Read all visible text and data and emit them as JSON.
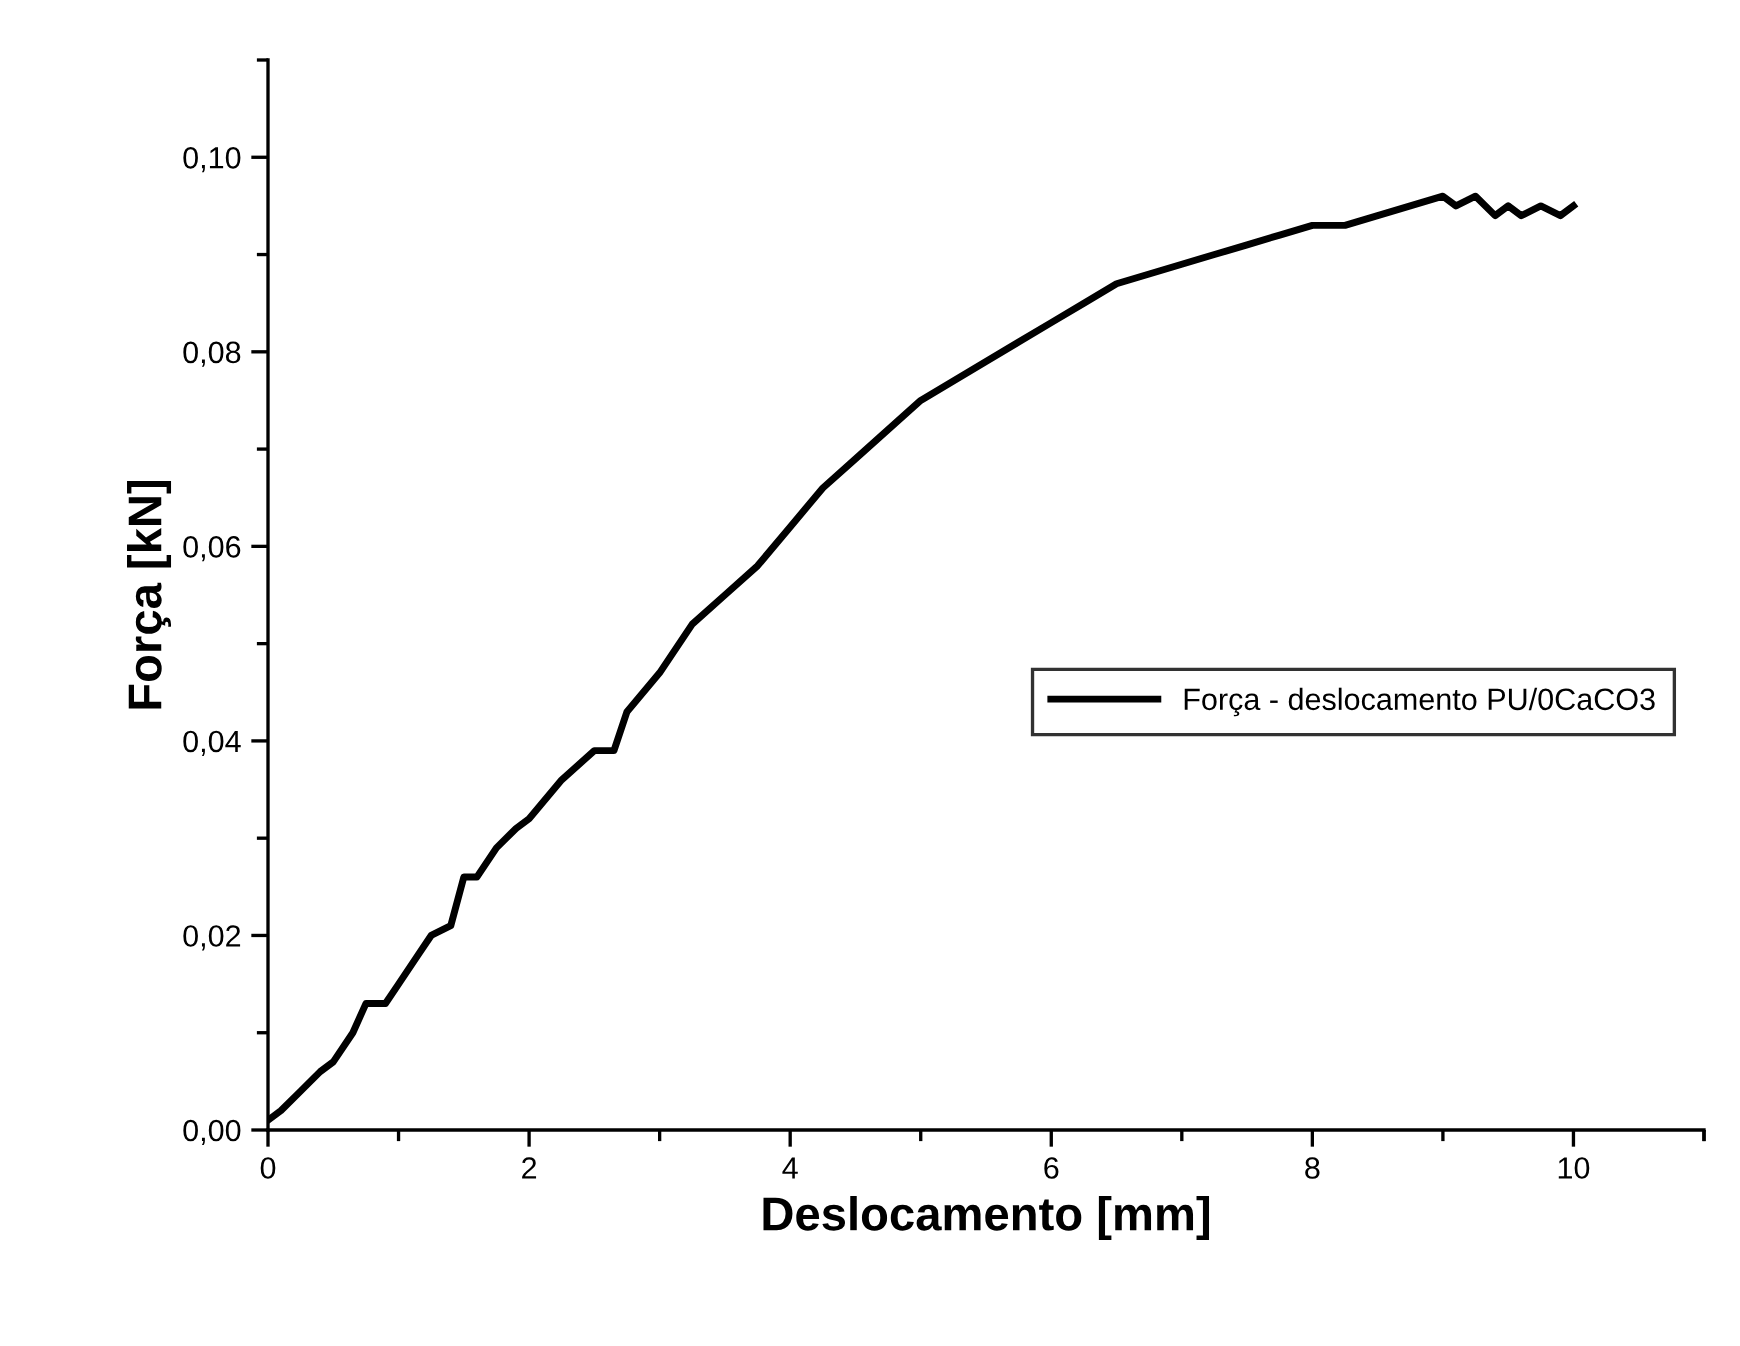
{
  "chart_data": {
    "type": "line",
    "xlabel": "Deslocamento [mm]",
    "ylabel": "Força [kN]",
    "x": [
      0,
      0.1,
      0.25,
      0.4,
      0.5,
      0.65,
      0.75,
      0.9,
      1.0,
      1.15,
      1.25,
      1.4,
      1.5,
      1.6,
      1.75,
      1.9,
      2.0,
      2.25,
      2.5,
      2.65,
      2.75,
      3.0,
      3.25,
      3.5,
      3.75,
      4.0,
      4.25,
      4.5,
      4.75,
      5.0,
      5.25,
      5.5,
      5.75,
      6.0,
      6.25,
      6.5,
      6.75,
      7.0,
      7.25,
      7.5,
      7.75,
      8.0,
      8.25,
      8.5,
      8.75,
      9.0,
      9.1,
      9.25,
      9.4,
      9.5,
      9.6,
      9.75,
      9.9,
      10.0
    ],
    "series": [
      {
        "name": "Força - deslocamento PU/0CaCO3",
        "color": "#000000",
        "values": [
          0.001,
          0.002,
          0.004,
          0.006,
          0.007,
          0.01,
          0.013,
          0.013,
          0.015,
          0.018,
          0.02,
          0.021,
          0.026,
          0.026,
          0.029,
          0.031,
          0.032,
          0.036,
          0.039,
          0.039,
          0.043,
          0.047,
          0.052,
          0.055,
          0.058,
          0.062,
          0.066,
          0.069,
          0.072,
          0.075,
          0.077,
          0.079,
          0.081,
          0.083,
          0.085,
          0.087,
          0.088,
          0.089,
          0.09,
          0.091,
          0.092,
          0.093,
          0.093,
          0.094,
          0.095,
          0.096,
          0.095,
          0.096,
          0.094,
          0.095,
          0.094,
          0.095,
          0.094,
          0.095
        ]
      }
    ],
    "xlim": [
      0,
      11
    ],
    "xticks": [
      0,
      2,
      4,
      6,
      8,
      10
    ],
    "ylim": [
      0,
      0.11
    ],
    "yticks": [
      {
        "value": 0,
        "label": "0,00"
      },
      {
        "value": 0.02,
        "label": "0,02"
      },
      {
        "value": 0.04,
        "label": "0,04"
      },
      {
        "value": 0.06,
        "label": "0,06"
      },
      {
        "value": 0.08,
        "label": "0,08"
      },
      {
        "value": 0.1,
        "label": "0,10"
      }
    ],
    "legend": "center right",
    "grid": false,
    "marker": "none",
    "line_style": "solid"
  }
}
